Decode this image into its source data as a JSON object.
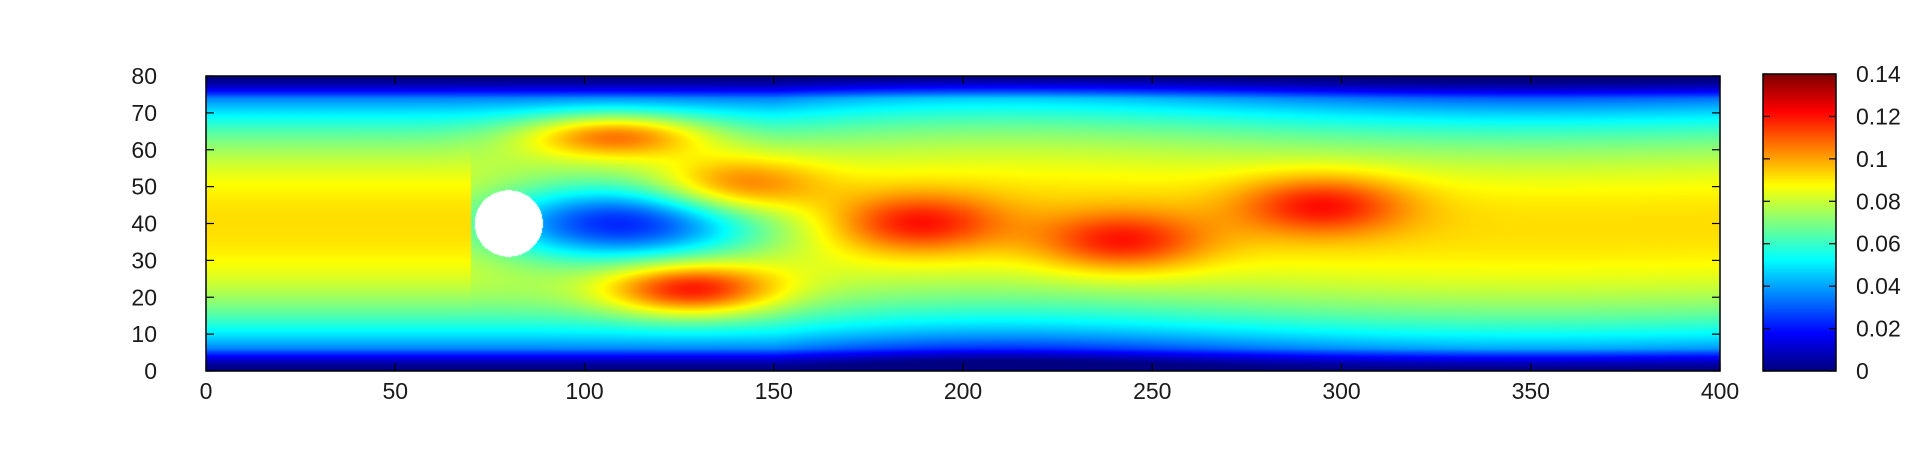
{
  "chart_data": {
    "type": "heatmap",
    "title": "",
    "xlabel": "",
    "ylabel": "",
    "xlim": [
      0,
      400
    ],
    "ylim": [
      0,
      80
    ],
    "x_ticks": [
      0,
      50,
      100,
      150,
      200,
      250,
      300,
      350,
      400
    ],
    "y_ticks": [
      0,
      10,
      20,
      30,
      40,
      50,
      60,
      70,
      80
    ],
    "x_tick_labels": [
      "0",
      "50",
      "100",
      "150",
      "200",
      "250",
      "300",
      "350",
      "400"
    ],
    "y_tick_labels": [
      "0",
      "10",
      "20",
      "30",
      "40",
      "50",
      "60",
      "70",
      "80"
    ],
    "colorbar": {
      "range": [
        0,
        0.14
      ],
      "ticks": [
        0,
        0.02,
        0.04,
        0.06,
        0.08,
        0.1,
        0.12,
        0.14
      ],
      "tick_labels": [
        "0",
        "0.02",
        "0.04",
        "0.06",
        "0.08",
        "0.1",
        "0.12",
        "0.14"
      ],
      "colormap": "jet"
    },
    "obstacle": {
      "shape": "circle",
      "center": [
        80,
        40
      ],
      "radius": 9,
      "color": "#ffffff"
    },
    "field_description": "velocity magnitude of channel flow past a cylinder; parabolic profile with peak ~0.09 at centerline, vortex street shed downstream",
    "sample_profile": {
      "y": [
        0,
        10,
        20,
        30,
        40,
        50,
        60,
        70,
        80
      ],
      "value_far_field": [
        0.0,
        0.045,
        0.075,
        0.088,
        0.092,
        0.088,
        0.075,
        0.045,
        0.0
      ]
    },
    "vortices": [
      {
        "x": 110,
        "y": 64,
        "sign": 1
      },
      {
        "x": 128,
        "y": 23,
        "sign": -1
      },
      {
        "x": 140,
        "y": 50,
        "sign": 1
      },
      {
        "x": 188,
        "y": 40,
        "sign": -1
      },
      {
        "x": 242,
        "y": 35,
        "sign": 1
      },
      {
        "x": 295,
        "y": 45,
        "sign": -1
      }
    ],
    "colors": {
      "frame": "#000000",
      "background": "#ffffff",
      "jet_low": "#00007f",
      "jet_high": "#7f0000"
    }
  }
}
